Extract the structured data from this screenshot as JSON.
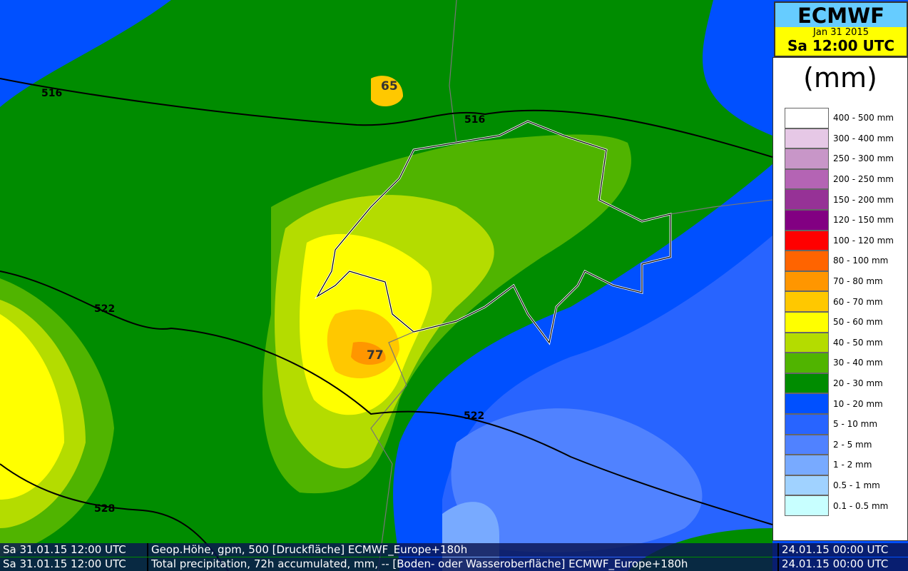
{
  "header": {
    "model": "ECMWF",
    "date": "Jan 31 2015",
    "time": "Sa 12:00 UTC"
  },
  "legend": {
    "unit": "(mm)",
    "items": [
      {
        "label": "400 - 500 mm",
        "color": "#ffffff"
      },
      {
        "label": "300 - 400 mm",
        "color": "#e6c8e6"
      },
      {
        "label": "250 - 300 mm",
        "color": "#c896c8"
      },
      {
        "label": "200 - 250 mm",
        "color": "#b464b4"
      },
      {
        "label": "150 - 200 mm",
        "color": "#963296"
      },
      {
        "label": "120 - 150 mm",
        "color": "#820082"
      },
      {
        "label": "100 - 120 mm",
        "color": "#ff0000"
      },
      {
        "label": "80 - 100 mm",
        "color": "#ff6400"
      },
      {
        "label": "70 - 80 mm",
        "color": "#ff9600"
      },
      {
        "label": "60 - 70 mm",
        "color": "#ffc800"
      },
      {
        "label": "50 - 60 mm",
        "color": "#ffff00"
      },
      {
        "label": "40 - 50 mm",
        "color": "#b4dc00"
      },
      {
        "label": "30 - 40 mm",
        "color": "#50b400"
      },
      {
        "label": "20 - 30 mm",
        "color": "#008c00"
      },
      {
        "label": "10 - 20 mm",
        "color": "#0050ff"
      },
      {
        "label": "5 - 10 mm",
        "color": "#2864ff"
      },
      {
        "label": "2 - 5 mm",
        "color": "#5082ff"
      },
      {
        "label": "1 - 2 mm",
        "color": "#78aaff"
      },
      {
        "label": "0.5 - 1 mm",
        "color": "#a0d2ff"
      },
      {
        "label": "0.1 - 0.5 mm",
        "color": "#c8ffff"
      }
    ]
  },
  "map": {
    "isolines": [
      "516",
      "516",
      "522",
      "522",
      "528"
    ],
    "maxima": [
      "65",
      "77"
    ]
  },
  "footer": [
    {
      "valid": "Sa 31.01.15 12:00 UTC",
      "field": "Geop.Höhe, gpm, 500 [Druckfläche] ECMWF_Europe+180h",
      "run": "24.01.15 00:00 UTC"
    },
    {
      "valid": "Sa 31.01.15 12:00 UTC",
      "field": "Total precipitation, 72h accumulated, mm, -- [Boden- oder Wasseroberfläche] ECMWF_Europe+180h",
      "run": "24.01.15 00:00 UTC"
    }
  ]
}
